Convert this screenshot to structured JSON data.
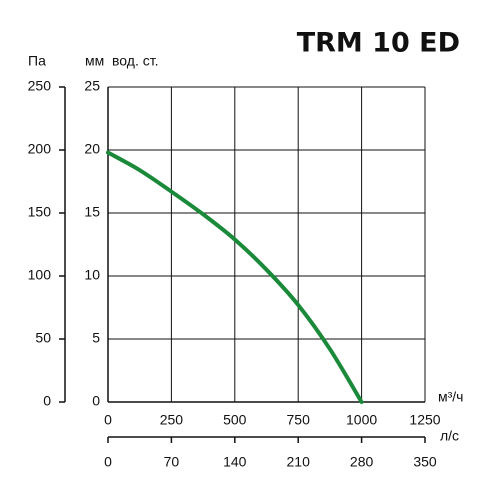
{
  "chart_data": {
    "type": "line",
    "title": "TRM 10 ED",
    "x_label": "м³/ч",
    "x2_label": "л/с",
    "y_label": "мм  вод. ст.",
    "y2_label": "Па",
    "x": [
      0,
      125,
      250,
      375,
      500,
      625,
      750,
      875,
      1000
    ],
    "series": [
      {
        "color": "#1a8a3a",
        "values": [
          19.8,
          18.4,
          16.7,
          14.9,
          12.9,
          10.5,
          7.7,
          4.2,
          0
        ]
      }
    ],
    "xlim": [
      0,
      1250
    ],
    "xticks": [
      0,
      250,
      500,
      750,
      1000,
      1250
    ],
    "x2lim": [
      0,
      350
    ],
    "x2ticks": [
      0,
      70,
      140,
      210,
      280,
      350
    ],
    "ylim": [
      0,
      25
    ],
    "yticks": [
      0,
      5,
      10,
      15,
      20,
      25
    ],
    "y2lim": [
      0,
      250
    ],
    "y2ticks": [
      0,
      50,
      100,
      150,
      200,
      250
    ],
    "grid": true
  }
}
